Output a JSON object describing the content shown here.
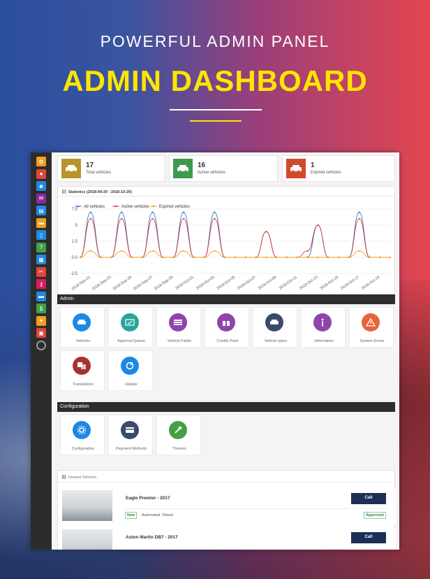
{
  "hero": {
    "subtitle": "POWERFUL ADMIN PANEL",
    "title": "ADMIN DASHBOARD"
  },
  "sidebar": {
    "icons": [
      {
        "name": "dashboard-icon",
        "color": "#f0a020"
      },
      {
        "name": "car-icon",
        "color": "#e04535"
      },
      {
        "name": "users-icon",
        "color": "#1e88e5"
      },
      {
        "name": "chat-icon",
        "color": "#8e2a9c"
      },
      {
        "name": "tags-icon",
        "color": "#1e88e5"
      },
      {
        "name": "vehicle-icon",
        "color": "#f0a020"
      },
      {
        "name": "mobile-icon",
        "color": "#1e88e5"
      },
      {
        "name": "question-icon",
        "color": "#43a047"
      },
      {
        "name": "calendar-icon",
        "color": "#1e88e5"
      },
      {
        "name": "tools-icon",
        "color": "#e04535"
      },
      {
        "name": "key-icon",
        "color": "#d81b60"
      },
      {
        "name": "vehicle-types-icon",
        "color": "#1e88e5"
      },
      {
        "name": "money-icon",
        "color": "#43a047"
      },
      {
        "name": "puzzle-icon",
        "color": "#f0a020"
      },
      {
        "name": "box-icon",
        "color": "#e04535"
      },
      {
        "name": "globe-icon",
        "color": "#555555"
      }
    ]
  },
  "stats": [
    {
      "value": "17",
      "label": "Total vehicles",
      "color": "#b8942a"
    },
    {
      "value": "16",
      "label": "Active vehicles",
      "color": "#3f9a4e"
    },
    {
      "value": "1",
      "label": "Expired vehicles",
      "color": "#d24a2c"
    }
  ],
  "statistics": {
    "heading": "Statistics (2018-09-20 - 2018-10-20)"
  },
  "chart_data": {
    "type": "line",
    "x": [
      "2018-Sep-20",
      "2018-Sep-21",
      "2018-Sep-22",
      "2018-Sep-23",
      "2018-Sep-24",
      "2018-Sep-25",
      "2018-Sep-26",
      "2018-Sep-27",
      "2018-Sep-28",
      "2018-Sep-29",
      "2018-Sep-30",
      "2018-Oct-01",
      "2018-Oct-02",
      "2018-Oct-03",
      "2018-Oct-04",
      "2018-Oct-05",
      "2018-Oct-06",
      "2018-Oct-07",
      "2018-Oct-08",
      "2018-Oct-09",
      "2018-Oct-10",
      "2018-Oct-11",
      "2018-Oct-12",
      "2018-Oct-13",
      "2018-Oct-14",
      "2018-Oct-15",
      "2018-Oct-16",
      "2018-Oct-17",
      "2018-Oct-18",
      "2018-Oct-19",
      "2018-Oct-20"
    ],
    "tick_labels": [
      "2018-Sep-21",
      "2018-Sep-23",
      "2018-Sep-25",
      "2018-Sep-27",
      "2018-Sep-29",
      "2018-Oct-01",
      "2018-Oct-03",
      "2018-Oct-05",
      "2018-Oct-07",
      "2018-Oct-09",
      "2018-Oct-11",
      "2018-Oct-13",
      "2018-Oct-15",
      "2018-Oct-17",
      "2018-Oct-19"
    ],
    "series": [
      {
        "name": "All vehicles",
        "color": "#2a6fd6",
        "values": [
          0,
          7,
          0,
          0,
          7,
          0,
          0,
          7,
          0,
          0,
          7,
          0,
          0,
          7,
          0,
          0,
          0,
          0,
          4,
          0,
          0,
          0,
          0,
          5,
          0,
          0,
          0,
          7,
          0,
          0,
          0
        ]
      },
      {
        "name": "Active vehicles",
        "color": "#d8422f",
        "values": [
          0,
          6,
          0,
          0,
          6,
          0,
          0,
          6,
          0,
          0,
          6,
          0,
          0,
          6,
          0,
          0,
          0,
          0,
          4,
          0,
          0,
          0,
          1,
          5,
          0,
          0,
          0,
          6,
          0,
          0,
          0
        ]
      },
      {
        "name": "Expired vehicles",
        "color": "#f39a1b",
        "values": [
          0,
          1,
          0,
          0,
          1,
          0,
          0,
          1,
          0,
          0,
          1,
          0,
          0,
          1,
          0,
          0,
          0,
          0,
          0,
          0,
          0,
          0,
          0,
          0,
          0,
          0,
          0,
          1,
          0,
          0,
          0
        ]
      }
    ],
    "yticks": [
      "7.5",
      "5",
      "2.5",
      "0.0",
      "-2.5"
    ],
    "ylim": [
      -2.5,
      7.5
    ],
    "legend": "top-left",
    "grid": true
  },
  "admin": {
    "title": "Admin",
    "tiles": [
      {
        "label": "Vehicles",
        "icon": "car-icon",
        "color": "#1e88e5"
      },
      {
        "label": "Approval Queue",
        "icon": "approval-icon",
        "color": "#26a69a"
      },
      {
        "label": "Vehicle Fields",
        "icon": "list-icon",
        "color": "#8e44ad"
      },
      {
        "label": "Credits Pack",
        "icon": "gift-icon",
        "color": "#8e44ad"
      },
      {
        "label": "Vehicle types",
        "icon": "car-icon",
        "color": "#3b4a6b"
      },
      {
        "label": "Information",
        "icon": "info-icon",
        "color": "#8e44ad"
      },
      {
        "label": "System Errors",
        "icon": "warning-icon",
        "color": "#e8643a"
      },
      {
        "label": "Translations",
        "icon": "translate-icon",
        "color": "#a83232"
      },
      {
        "label": "Update",
        "icon": "refresh-icon",
        "color": "#1e88e5"
      }
    ]
  },
  "configuration": {
    "title": "Configuration",
    "tiles": [
      {
        "label": "Configuration",
        "icon": "gear-icon",
        "color": "#1e88e5"
      },
      {
        "label": "Payment Methods",
        "icon": "payment-icon",
        "color": "#3b4a6b"
      },
      {
        "label": "Themes",
        "icon": "brush-icon",
        "color": "#43a047"
      }
    ]
  },
  "newest": {
    "heading": "Newest Vehicles",
    "items": [
      {
        "title": "Eagle Premier - 2017",
        "button": "Call",
        "badge": "New",
        "specs": "-Automated  -Diesel",
        "status": "Approved"
      },
      {
        "title": "Aston Martin DB7 - 2017",
        "button": "Call"
      }
    ]
  }
}
